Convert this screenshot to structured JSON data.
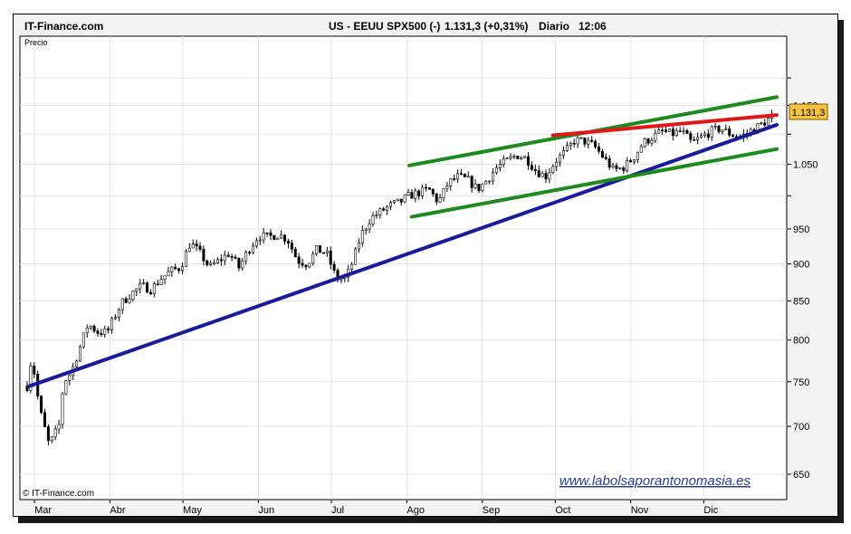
{
  "header": {
    "site": "IT-Finance.com",
    "instrument": "US - EEUU SPX500 (-)",
    "last_value": "1.131,3 (+0,31%)",
    "period": "Diario",
    "time": "12:06"
  },
  "panel_label": "Precio",
  "copyright": "© IT-Finance.com",
  "watermark_url": "www.labolsaporantonomasia.es",
  "colors": {
    "up_candle": "#ffffff",
    "down_candle": "#000000",
    "channel_lines": "#1c8a1c",
    "long_trendline": "#1a1a9a",
    "resistance_line": "#e01818",
    "price_box": "#f5c242",
    "watermark": "#2a3d8f"
  },
  "chart_data": {
    "type": "candlestick",
    "title": "",
    "xlabel": "",
    "ylabel": "",
    "y_scale": "log",
    "ylim": [
      625,
      1280
    ],
    "y_ticks": [
      {
        "value": 650,
        "label": "650"
      },
      {
        "value": 700,
        "label": "700"
      },
      {
        "value": 750,
        "label": "750"
      },
      {
        "value": 800,
        "label": "800"
      },
      {
        "value": 850,
        "label": "850"
      },
      {
        "value": 900,
        "label": "900"
      },
      {
        "value": 950,
        "label": "950"
      },
      {
        "value": 1050,
        "label": "1.050"
      },
      {
        "value": 1150,
        "label": "1.150"
      }
    ],
    "unlabeled_gridlines": [
      1000,
      1100,
      1200
    ],
    "x_ticks": [
      "Mar",
      "Abr",
      "May",
      "Jun",
      "Jul",
      "Ago",
      "Sep",
      "Oct",
      "Nov",
      "Dic"
    ],
    "x_tick_days": [
      0,
      31,
      61,
      92,
      122,
      153,
      184,
      214,
      245,
      275
    ],
    "x_range_days": [
      -3,
      305
    ],
    "last_price": {
      "value": 1131.3,
      "label": "1.131,3"
    },
    "anchors": [
      {
        "day": -3,
        "close": 745
      },
      {
        "day": -2,
        "close": 775
      },
      {
        "day": 0,
        "close": 760
      },
      {
        "day": 2,
        "close": 720
      },
      {
        "day": 4,
        "close": 700
      },
      {
        "day": 6,
        "close": 680
      },
      {
        "day": 8,
        "close": 690
      },
      {
        "day": 10,
        "close": 700
      },
      {
        "day": 12,
        "close": 750
      },
      {
        "day": 15,
        "close": 760
      },
      {
        "day": 18,
        "close": 785
      },
      {
        "day": 22,
        "close": 820
      },
      {
        "day": 26,
        "close": 810
      },
      {
        "day": 30,
        "close": 810
      },
      {
        "day": 33,
        "close": 830
      },
      {
        "day": 36,
        "close": 848
      },
      {
        "day": 40,
        "close": 860
      },
      {
        "day": 44,
        "close": 870
      },
      {
        "day": 48,
        "close": 865
      },
      {
        "day": 52,
        "close": 880
      },
      {
        "day": 56,
        "close": 890
      },
      {
        "day": 60,
        "close": 895
      },
      {
        "day": 64,
        "close": 930
      },
      {
        "day": 68,
        "close": 915
      },
      {
        "day": 72,
        "close": 895
      },
      {
        "day": 76,
        "close": 905
      },
      {
        "day": 80,
        "close": 915
      },
      {
        "day": 84,
        "close": 895
      },
      {
        "day": 88,
        "close": 920
      },
      {
        "day": 92,
        "close": 940
      },
      {
        "day": 96,
        "close": 938
      },
      {
        "day": 100,
        "close": 942
      },
      {
        "day": 104,
        "close": 935
      },
      {
        "day": 108,
        "close": 905
      },
      {
        "day": 112,
        "close": 900
      },
      {
        "day": 116,
        "close": 920
      },
      {
        "day": 120,
        "close": 915
      },
      {
        "day": 124,
        "close": 880
      },
      {
        "day": 128,
        "close": 880
      },
      {
        "day": 131,
        "close": 905
      },
      {
        "day": 134,
        "close": 940
      },
      {
        "day": 138,
        "close": 965
      },
      {
        "day": 142,
        "close": 975
      },
      {
        "day": 146,
        "close": 985
      },
      {
        "day": 150,
        "close": 990
      },
      {
        "day": 154,
        "close": 1000
      },
      {
        "day": 158,
        "close": 1005
      },
      {
        "day": 162,
        "close": 1010
      },
      {
        "day": 166,
        "close": 990
      },
      {
        "day": 170,
        "close": 1020
      },
      {
        "day": 174,
        "close": 1030
      },
      {
        "day": 178,
        "close": 1025
      },
      {
        "day": 182,
        "close": 1010
      },
      {
        "day": 186,
        "close": 1025
      },
      {
        "day": 190,
        "close": 1045
      },
      {
        "day": 194,
        "close": 1055
      },
      {
        "day": 198,
        "close": 1065
      },
      {
        "day": 202,
        "close": 1060
      },
      {
        "day": 206,
        "close": 1040
      },
      {
        "day": 210,
        "close": 1030
      },
      {
        "day": 214,
        "close": 1055
      },
      {
        "day": 218,
        "close": 1070
      },
      {
        "day": 222,
        "close": 1090
      },
      {
        "day": 226,
        "close": 1088
      },
      {
        "day": 230,
        "close": 1080
      },
      {
        "day": 234,
        "close": 1060
      },
      {
        "day": 238,
        "close": 1040
      },
      {
        "day": 242,
        "close": 1045
      },
      {
        "day": 246,
        "close": 1060
      },
      {
        "day": 250,
        "close": 1085
      },
      {
        "day": 254,
        "close": 1095
      },
      {
        "day": 258,
        "close": 1105
      },
      {
        "day": 262,
        "close": 1100
      },
      {
        "day": 266,
        "close": 1105
      },
      {
        "day": 270,
        "close": 1085
      },
      {
        "day": 274,
        "close": 1095
      },
      {
        "day": 278,
        "close": 1105
      },
      {
        "day": 282,
        "close": 1110
      },
      {
        "day": 286,
        "close": 1100
      },
      {
        "day": 290,
        "close": 1095
      },
      {
        "day": 294,
        "close": 1105
      },
      {
        "day": 298,
        "close": 1115
      },
      {
        "day": 302,
        "close": 1127
      },
      {
        "day": 304,
        "close": 1131
      }
    ],
    "trendlines": [
      {
        "role": "long_trendline",
        "from": [
          -2,
          745
        ],
        "to": [
          305,
          1116
        ]
      },
      {
        "role": "channel_lines",
        "from": [
          154,
          1048
        ],
        "to": [
          305,
          1165
        ]
      },
      {
        "role": "channel_lines",
        "from": [
          155,
          968
        ],
        "to": [
          305,
          1075
        ]
      },
      {
        "role": "resistance_line",
        "from": [
          213,
          1098
        ],
        "to": [
          305,
          1133
        ]
      }
    ]
  }
}
